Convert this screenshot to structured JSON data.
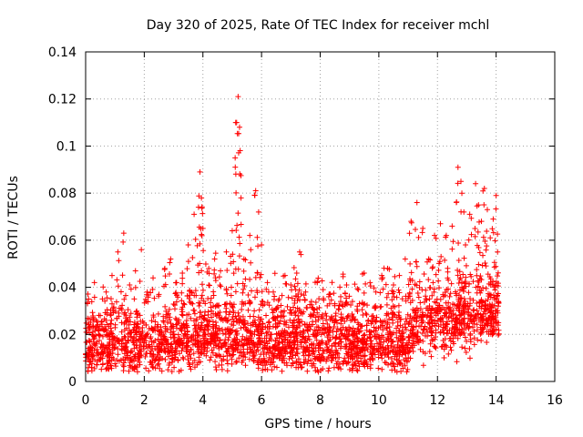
{
  "chart_data": {
    "type": "scatter",
    "title": "Day 320 of 2025, Rate Of TEC Index for receiver mchl",
    "xlabel": "GPS time / hours",
    "ylabel": "ROTI / TECUs",
    "xlim": [
      0,
      16
    ],
    "ylim": [
      0,
      0.14
    ],
    "x_ticks": [
      0,
      2,
      4,
      6,
      8,
      10,
      12,
      14,
      16
    ],
    "y_ticks": [
      0,
      0.02,
      0.04,
      0.06,
      0.08,
      0.1,
      0.12,
      0.14
    ],
    "x_tick_labels": [
      "0",
      "2",
      "4",
      "6",
      "8",
      "10",
      "12",
      "14",
      "16"
    ],
    "y_tick_labels": [
      "0",
      "0.02",
      "0.04",
      "0.06",
      "0.08",
      "0.1",
      "0.12",
      "0.14"
    ],
    "grid": true,
    "marker": "+",
    "color": "#ff0000",
    "data_x_range": [
      0,
      14.1
    ],
    "series": [
      {
        "name": "ROTI",
        "description": "dense cloud of ROTI samples, mostly 0.005-0.045 TECU/s",
        "x": [
          0.1,
          0.3,
          0.5,
          0.7,
          0.9,
          1.1,
          1.3,
          1.5,
          1.7,
          1.9,
          2.1,
          2.3,
          2.5,
          2.7,
          2.9,
          3.1,
          3.3,
          3.5,
          3.7,
          3.85,
          3.9,
          3.95,
          4.0,
          4.2,
          4.4,
          4.6,
          4.8,
          5.0,
          5.1,
          5.15,
          5.2,
          5.25,
          5.3,
          5.4,
          5.6,
          5.8,
          5.9,
          6.0,
          6.2,
          6.4,
          6.6,
          6.8,
          7.0,
          7.2,
          7.3,
          7.5,
          7.7,
          7.9,
          8.1,
          8.3,
          8.5,
          8.7,
          8.9,
          9.1,
          9.3,
          9.5,
          9.7,
          9.9,
          10.1,
          10.3,
          10.5,
          10.7,
          10.9,
          11.1,
          11.3,
          11.5,
          11.7,
          11.9,
          12.1,
          12.3,
          12.5,
          12.7,
          12.8,
          12.9,
          13.1,
          13.3,
          13.4,
          13.5,
          13.6,
          13.7,
          13.8,
          13.9,
          14.0,
          14.05
        ],
        "y": [
          0.035,
          0.042,
          0.028,
          0.038,
          0.045,
          0.055,
          0.063,
          0.041,
          0.047,
          0.056,
          0.038,
          0.044,
          0.037,
          0.048,
          0.052,
          0.042,
          0.046,
          0.058,
          0.071,
          0.074,
          0.089,
          0.078,
          0.065,
          0.048,
          0.052,
          0.047,
          0.055,
          0.064,
          0.095,
          0.11,
          0.121,
          0.108,
          0.078,
          0.052,
          0.062,
          0.081,
          0.072,
          0.058,
          0.042,
          0.038,
          0.035,
          0.045,
          0.041,
          0.046,
          0.055,
          0.038,
          0.034,
          0.042,
          0.039,
          0.037,
          0.033,
          0.036,
          0.041,
          0.034,
          0.039,
          0.046,
          0.042,
          0.038,
          0.045,
          0.048,
          0.041,
          0.045,
          0.052,
          0.068,
          0.076,
          0.065,
          0.052,
          0.062,
          0.067,
          0.062,
          0.066,
          0.091,
          0.085,
          0.072,
          0.071,
          0.084,
          0.075,
          0.068,
          0.082,
          0.073,
          0.061,
          0.069,
          0.079,
          0.055
        ]
      }
    ]
  }
}
